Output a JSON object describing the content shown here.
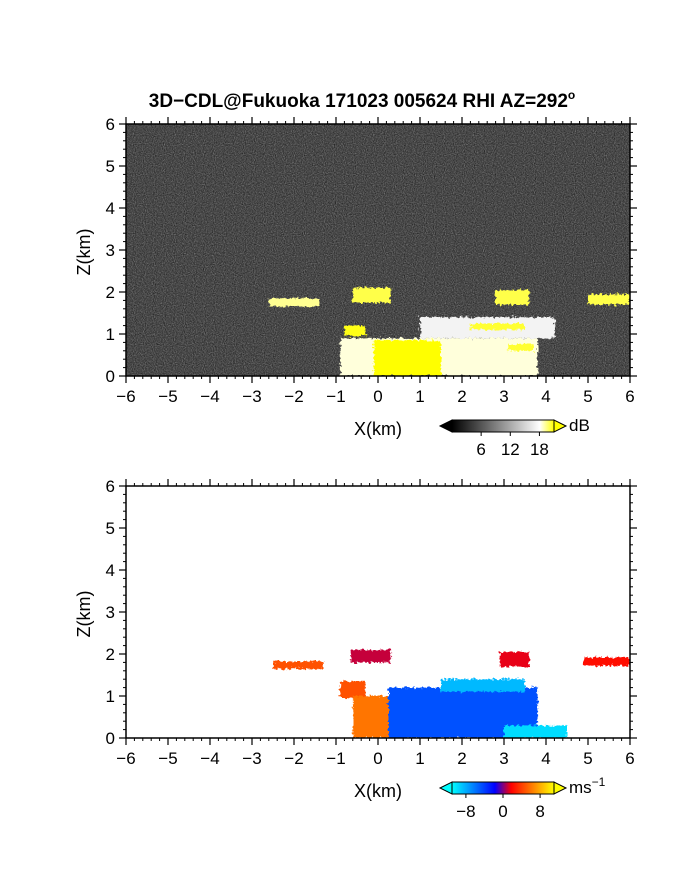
{
  "figure": {
    "title": "3D−CDL@Fukuoka 171023 005624 RHI AZ=292",
    "title_superscript": "o"
  },
  "chart_data": [
    {
      "type": "heatmap",
      "title": "3D−CDL@Fukuoka 171023 005624 RHI AZ=292°",
      "xlabel": "X(km)",
      "ylabel": "Z(km)",
      "xlim": [
        -6,
        6
      ],
      "ylim": [
        0,
        6
      ],
      "xticks": [
        -6,
        -5,
        -4,
        -3,
        -2,
        -1,
        0,
        1,
        2,
        3,
        4,
        5,
        6
      ],
      "yticks": [
        0,
        1,
        2,
        3,
        4,
        5,
        6
      ],
      "background": "noise",
      "colorbar": {
        "label": "dB",
        "ticks": [
          6,
          12,
          18
        ],
        "range": [
          0,
          21
        ],
        "colors": [
          "#000000",
          "#ffffff",
          "#ffff00"
        ]
      },
      "features": [
        {
          "x0": -0.9,
          "x1": 3.8,
          "z0": 0.0,
          "z1": 0.9,
          "value": 12
        },
        {
          "x0": 1.0,
          "x1": 4.2,
          "z0": 0.9,
          "z1": 1.4,
          "value": 10
        },
        {
          "x0": -2.6,
          "x1": -1.4,
          "z0": 1.65,
          "z1": 1.85,
          "value": 15
        },
        {
          "x0": -0.6,
          "x1": 0.3,
          "z0": 1.75,
          "z1": 2.1,
          "value": 18
        },
        {
          "x0": 2.8,
          "x1": 3.6,
          "z0": 1.7,
          "z1": 2.05,
          "value": 18
        },
        {
          "x0": 5.0,
          "x1": 6.0,
          "z0": 1.7,
          "z1": 1.95,
          "value": 18
        },
        {
          "x0": -0.1,
          "x1": 1.5,
          "z0": 0.0,
          "z1": 0.85,
          "value": 21
        },
        {
          "x0": -0.8,
          "x1": -0.3,
          "z0": 0.95,
          "z1": 1.2,
          "value": 20
        },
        {
          "x0": 2.2,
          "x1": 3.5,
          "z0": 1.1,
          "z1": 1.25,
          "value": 19
        },
        {
          "x0": 3.1,
          "x1": 3.7,
          "z0": 0.6,
          "z1": 0.75,
          "value": 19
        }
      ]
    },
    {
      "type": "heatmap",
      "xlabel": "X(km)",
      "ylabel": "Z(km)",
      "xlim": [
        -6,
        6
      ],
      "ylim": [
        0,
        6
      ],
      "xticks": [
        -6,
        -5,
        -4,
        -3,
        -2,
        -1,
        0,
        1,
        2,
        3,
        4,
        5,
        6
      ],
      "yticks": [
        0,
        1,
        2,
        3,
        4,
        5,
        6
      ],
      "background": "#ffffff",
      "colorbar": {
        "label": "ms−1",
        "ticks": [
          -8,
          0,
          8
        ],
        "range": [
          -11,
          11
        ],
        "colors": [
          "#00ffff",
          "#0000ff",
          "#ff0000",
          "#ffff00"
        ]
      },
      "features": [
        {
          "x0": -2.5,
          "x1": -1.3,
          "z0": 1.65,
          "z1": 1.82,
          "value": 6
        },
        {
          "x0": -0.65,
          "x1": 0.3,
          "z0": 1.8,
          "z1": 2.1,
          "value": 2
        },
        {
          "x0": -0.9,
          "x1": -0.3,
          "z0": 0.95,
          "z1": 1.35,
          "value": 6
        },
        {
          "x0": -0.6,
          "x1": 0.25,
          "z0": 0.0,
          "z1": 1.0,
          "value": 7
        },
        {
          "x0": 0.25,
          "x1": 3.8,
          "z0": 0.0,
          "z1": 1.2,
          "value": -6
        },
        {
          "x0": 1.5,
          "x1": 3.5,
          "z0": 1.1,
          "z1": 1.4,
          "value": -9
        },
        {
          "x0": 3.0,
          "x1": 4.5,
          "z0": 0.0,
          "z1": 0.3,
          "value": -10
        },
        {
          "x0": 2.9,
          "x1": 3.6,
          "z0": 1.7,
          "z1": 2.05,
          "value": 3
        },
        {
          "x0": 4.9,
          "x1": 6.0,
          "z0": 1.72,
          "z1": 1.92,
          "value": 4
        }
      ]
    }
  ]
}
